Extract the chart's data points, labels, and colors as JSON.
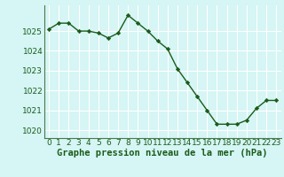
{
  "x": [
    0,
    1,
    2,
    3,
    4,
    5,
    6,
    7,
    8,
    9,
    10,
    11,
    12,
    13,
    14,
    15,
    16,
    17,
    18,
    19,
    20,
    21,
    22,
    23
  ],
  "y": [
    1025.1,
    1025.4,
    1025.4,
    1025.0,
    1025.0,
    1024.9,
    1024.65,
    1024.9,
    1025.8,
    1025.4,
    1025.0,
    1024.5,
    1024.1,
    1023.1,
    1022.4,
    1021.7,
    1021.0,
    1020.3,
    1020.3,
    1020.3,
    1020.5,
    1021.1,
    1021.5,
    1021.5
  ],
  "line_color": "#1a5c1a",
  "marker": "D",
  "marker_size": 2.2,
  "linewidth": 1.0,
  "bg_color": "#d6f5f5",
  "grid_color": "#ffffff",
  "xlabel": "Graphe pression niveau de la mer (hPa)",
  "xlabel_color": "#1a5c1a",
  "xlabel_fontsize": 7.5,
  "tick_label_color": "#1a5c1a",
  "tick_fontsize": 6.5,
  "ylim": [
    1019.6,
    1026.3
  ],
  "yticks": [
    1020,
    1021,
    1022,
    1023,
    1024,
    1025
  ],
  "xticks": [
    0,
    1,
    2,
    3,
    4,
    5,
    6,
    7,
    8,
    9,
    10,
    11,
    12,
    13,
    14,
    15,
    16,
    17,
    18,
    19,
    20,
    21,
    22,
    23
  ],
  "left_spine_color": "#4a7a4a",
  "bottom_spine_color": "#4a7a4a"
}
